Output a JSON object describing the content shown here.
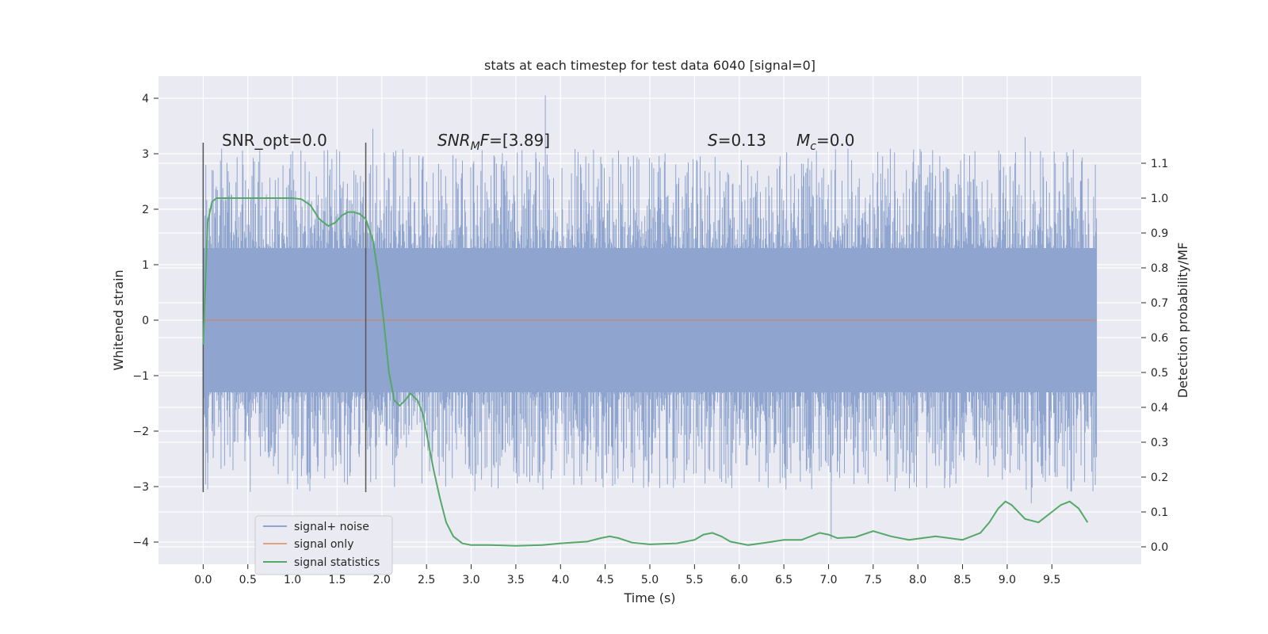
{
  "chart_data": {
    "type": "line",
    "title": "stats at each timestep for test data 6040 [signal=0]",
    "xlabel": "Time (s)",
    "ylabel": "Whitened strain",
    "y2label": "Detection probability/MF",
    "xlim": [
      -0.5,
      10.5
    ],
    "ylim": [
      -4.4,
      4.4
    ],
    "y2lim": [
      -0.05,
      1.35
    ],
    "xticks": [
      "0.0",
      "0.5",
      "1.0",
      "1.5",
      "2.0",
      "2.5",
      "3.0",
      "3.5",
      "4.0",
      "4.5",
      "5.0",
      "5.5",
      "6.0",
      "6.5",
      "7.0",
      "7.5",
      "8.0",
      "8.5",
      "9.0",
      "9.5"
    ],
    "yticks": [
      "4",
      "3",
      "2",
      "1",
      "0",
      "−1",
      "−2",
      "−3",
      "−4"
    ],
    "y2ticks": [
      "1.1",
      "1.0",
      "0.9",
      "0.8",
      "0.7",
      "0.6",
      "0.5",
      "0.4",
      "0.3",
      "0.2",
      "0.1",
      "0.0"
    ],
    "grid": true,
    "annotations": {
      "snr_opt": "SNR_opt=0.0",
      "snr_mf": "SNR_MF=[3.89]",
      "s": "S=0.13",
      "mc": "M_c=0.0"
    },
    "vlines_x": [
      0.0,
      1.82
    ],
    "legend_position": "lower-left",
    "series": [
      {
        "name": "signal+ noise",
        "color": "#8fa5cf",
        "x_range": [
          0.0,
          10.0
        ],
        "band": {
          "typical_max": 1.3,
          "typical_min": -1.3,
          "peak_max": 4.05,
          "peak_min": -3.95
        },
        "notable_peaks": [
          [
            0.03,
            2.8
          ],
          [
            0.05,
            -3.05
          ],
          [
            1.9,
            3.45
          ],
          [
            3.83,
            4.05
          ],
          [
            7.03,
            -3.95
          ],
          [
            9.2,
            3.3
          ],
          [
            9.27,
            -3.3
          ]
        ]
      },
      {
        "name": "signal only",
        "color": "#dd8452",
        "x": [
          0.0,
          10.0
        ],
        "y": [
          0.0,
          0.0
        ]
      },
      {
        "name": "signal statistics",
        "color": "#55a868",
        "axis": "right",
        "x": [
          0.0,
          0.05,
          0.1,
          0.15,
          0.25,
          0.4,
          0.6,
          0.8,
          1.0,
          1.1,
          1.2,
          1.3,
          1.4,
          1.48,
          1.55,
          1.62,
          1.68,
          1.75,
          1.82,
          1.9,
          1.96,
          2.02,
          2.08,
          2.14,
          2.2,
          2.26,
          2.32,
          2.4,
          2.46,
          2.52,
          2.58,
          2.65,
          2.72,
          2.8,
          2.9,
          3.0,
          3.2,
          3.5,
          3.8,
          4.0,
          4.3,
          4.45,
          4.55,
          4.65,
          4.8,
          5.0,
          5.3,
          5.5,
          5.6,
          5.7,
          5.8,
          5.9,
          6.1,
          6.3,
          6.5,
          6.7,
          6.9,
          7.0,
          7.1,
          7.3,
          7.5,
          7.7,
          7.9,
          8.2,
          8.5,
          8.7,
          8.8,
          8.9,
          8.98,
          9.05,
          9.2,
          9.35,
          9.5,
          9.6,
          9.7,
          9.8,
          9.9
        ],
        "y": [
          0.58,
          0.93,
          0.99,
          1.0,
          1.0,
          1.0,
          1.0,
          1.0,
          1.0,
          0.997,
          0.98,
          0.94,
          0.92,
          0.93,
          0.95,
          0.96,
          0.96,
          0.955,
          0.94,
          0.88,
          0.78,
          0.65,
          0.5,
          0.42,
          0.405,
          0.42,
          0.44,
          0.42,
          0.38,
          0.3,
          0.22,
          0.14,
          0.07,
          0.03,
          0.01,
          0.005,
          0.005,
          0.003,
          0.005,
          0.01,
          0.015,
          0.025,
          0.03,
          0.025,
          0.012,
          0.007,
          0.01,
          0.02,
          0.035,
          0.04,
          0.03,
          0.015,
          0.005,
          0.012,
          0.02,
          0.02,
          0.04,
          0.035,
          0.025,
          0.028,
          0.045,
          0.03,
          0.02,
          0.03,
          0.02,
          0.04,
          0.07,
          0.11,
          0.13,
          0.12,
          0.08,
          0.07,
          0.1,
          0.12,
          0.13,
          0.11,
          0.07
        ]
      }
    ]
  }
}
